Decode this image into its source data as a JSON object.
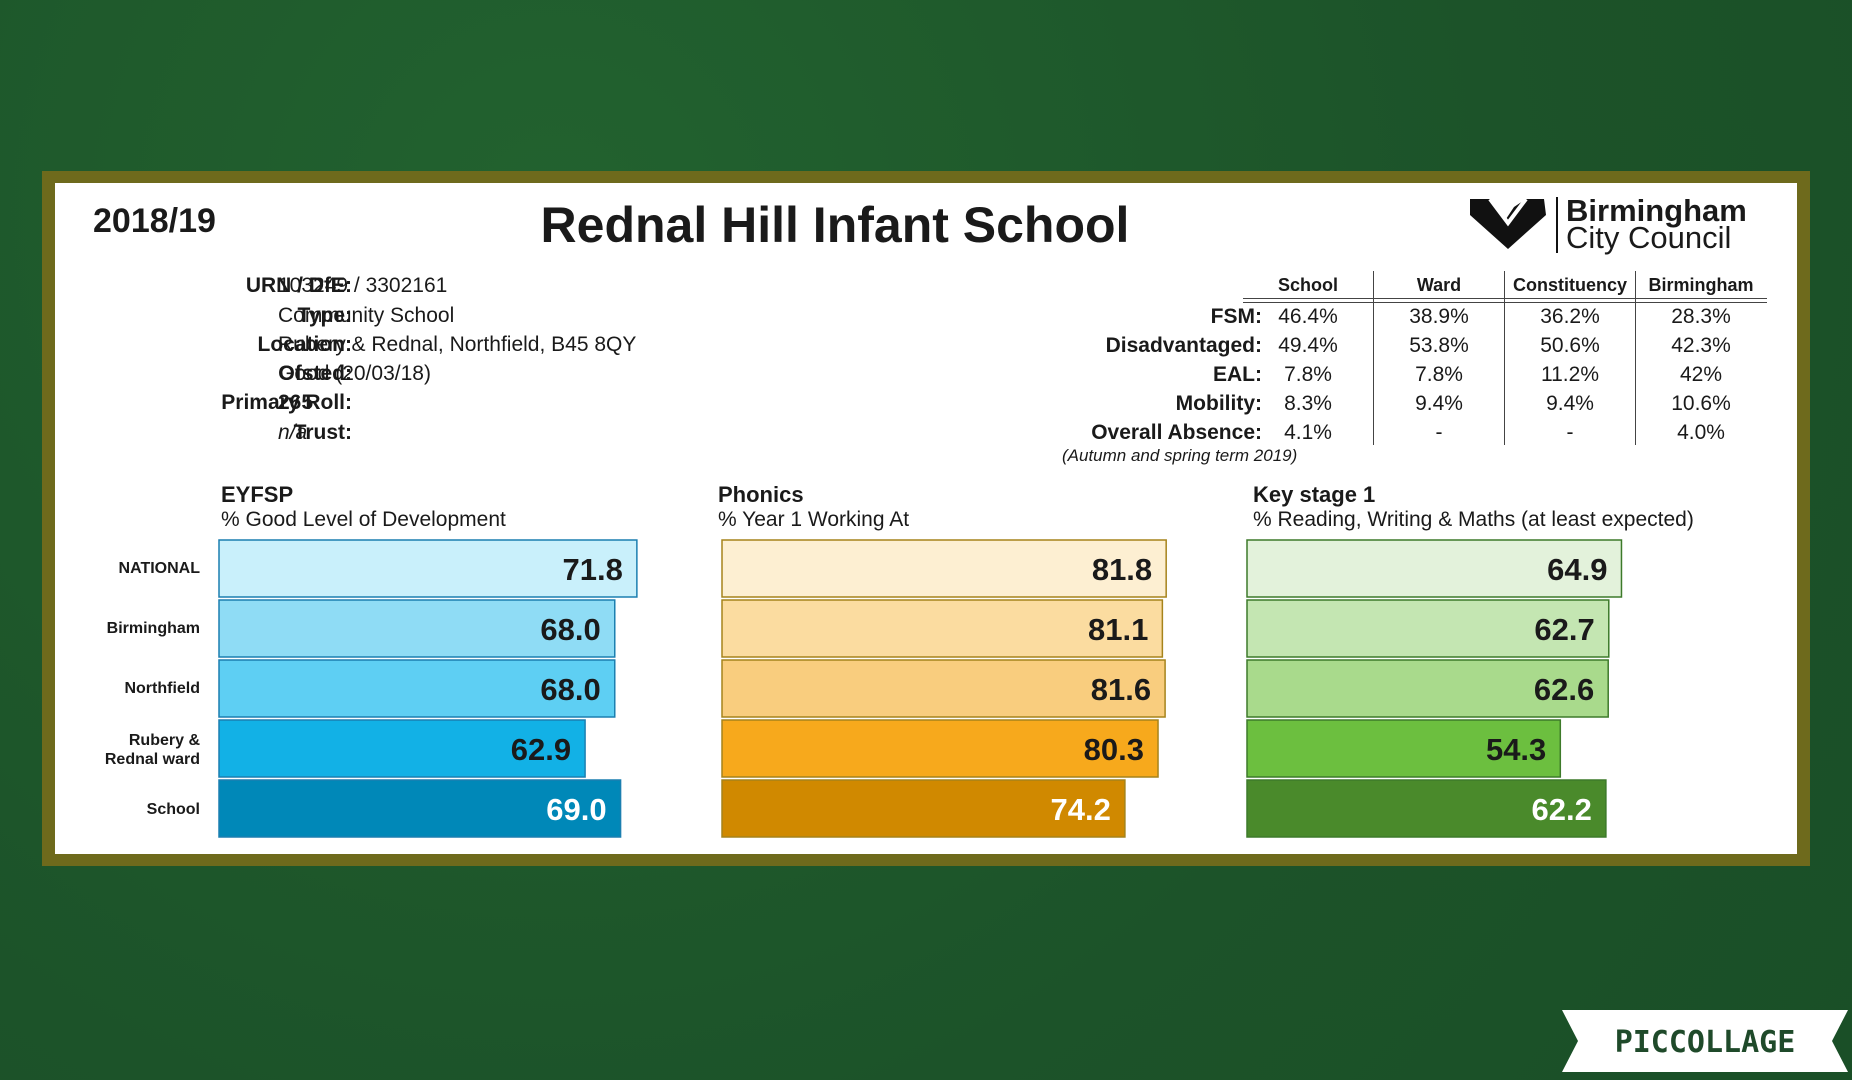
{
  "header": {
    "year": "2018/19",
    "title": "Rednal Hill Infant School"
  },
  "logo": {
    "line1": "Birmingham",
    "line2": "City Council"
  },
  "school_info": [
    {
      "label": "URN / DfE:",
      "value": "103249 / 3302161"
    },
    {
      "label": "Type:",
      "value": "Community School"
    },
    {
      "label": "Location:",
      "value": "Rubery & Rednal, Northfield, B45 8QY"
    },
    {
      "label": "Ofsted:",
      "value": "Good (20/03/18)"
    },
    {
      "label": "Primary Roll:",
      "value": "265"
    },
    {
      "label": "Trust:",
      "value": "n/a"
    }
  ],
  "stats": {
    "columns": [
      "School",
      "Ward",
      "Constituency",
      "Birmingham"
    ],
    "rows": [
      {
        "label": "FSM:",
        "values": [
          "46.4%",
          "38.9%",
          "36.2%",
          "28.3%"
        ]
      },
      {
        "label": "Disadvantaged:",
        "values": [
          "49.4%",
          "53.8%",
          "50.6%",
          "42.3%"
        ]
      },
      {
        "label": "EAL:",
        "values": [
          "7.8%",
          "7.8%",
          "11.2%",
          "42%"
        ]
      },
      {
        "label": "Mobility:",
        "values": [
          "8.3%",
          "9.4%",
          "9.4%",
          "10.6%"
        ]
      },
      {
        "label": "Overall Absence:",
        "values": [
          "4.1%",
          "-",
          "-",
          "4.0%"
        ]
      }
    ],
    "note": "(Autumn and spring term 2019)"
  },
  "chart_data": [
    {
      "type": "bar",
      "title": "EYFSP",
      "subtitle": "% Good Level  of Development",
      "categories": [
        "NATIONAL",
        "Birmingham",
        "Northfield",
        "Rubery & Rednal ward",
        "School"
      ],
      "values": [
        71.8,
        68.0,
        68.0,
        62.9,
        69.0
      ],
      "colors": [
        "#c9f0fb",
        "#8fdcf5",
        "#5ecff3",
        "#12b1e6",
        "#0088b8"
      ]
    },
    {
      "type": "bar",
      "title": "Phonics",
      "subtitle": "% Year 1 Working At",
      "categories": [
        "NATIONAL",
        "Birmingham",
        "Northfield",
        "Rubery & Rednal ward",
        "School"
      ],
      "values": [
        81.8,
        81.1,
        81.6,
        80.3,
        74.2
      ],
      "colors": [
        "#fdefd2",
        "#fbdca0",
        "#f9cd7e",
        "#f7a91c",
        "#d08900"
      ]
    },
    {
      "type": "bar",
      "title": "Key stage 1",
      "subtitle": "% Reading, Writing & Maths (at least expected)",
      "categories": [
        "NATIONAL",
        "Birmingham",
        "Northfield",
        "Rubery & Rednal ward",
        "School"
      ],
      "values": [
        64.9,
        62.7,
        62.6,
        54.3,
        62.2
      ],
      "colors": [
        "#e3f2db",
        "#c4e6b2",
        "#a9da8c",
        "#6cbf3f",
        "#4a8a2b"
      ]
    }
  ],
  "watermark": "PICCOLLAGE"
}
